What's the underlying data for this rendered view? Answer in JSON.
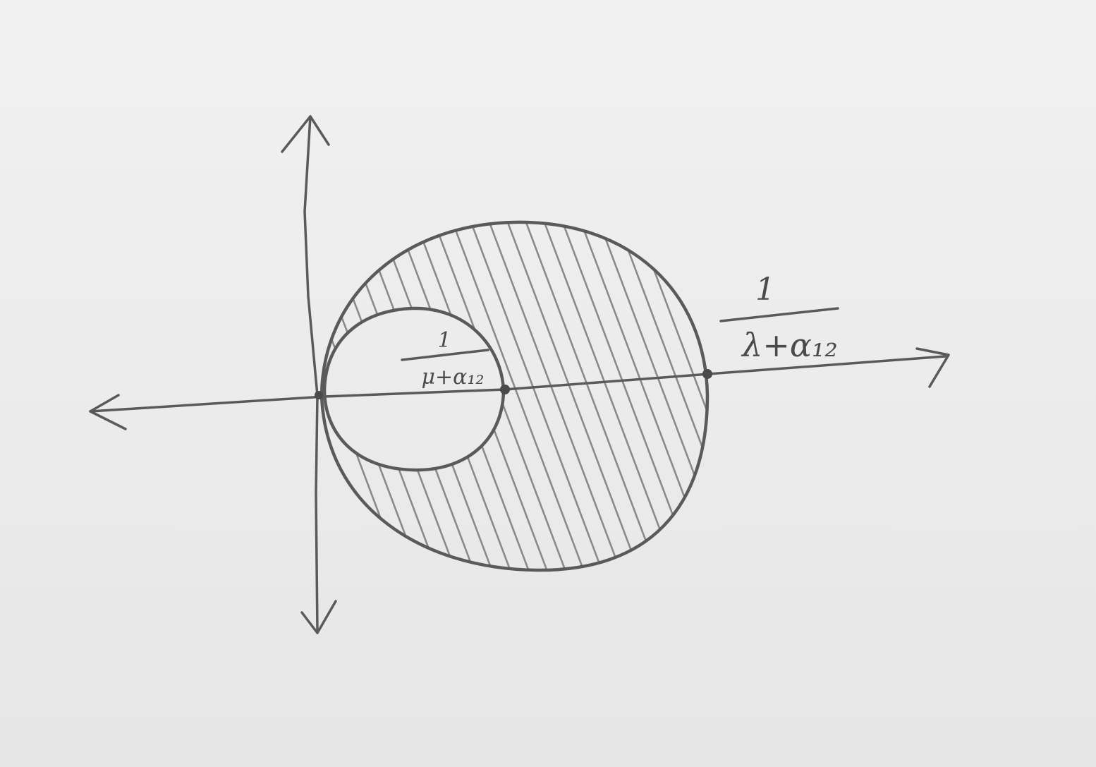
{
  "diagram": {
    "labels": {
      "outer_numerator": "1",
      "outer_denominator": "λ+α₁₂",
      "inner_numerator": "1",
      "inner_denominator": "μ+α₁₂"
    },
    "colors": {
      "paper": "#ececec",
      "pencil": "#5a5a5a",
      "hatch": "#8a8a8a"
    }
  }
}
